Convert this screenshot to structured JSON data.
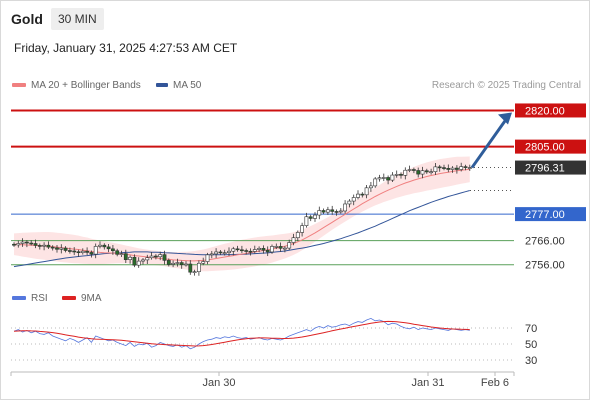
{
  "header": {
    "title": "Gold",
    "timeframe": "30 MIN"
  },
  "datetime": "Friday, January 31, 2025 4:27:53 AM CET",
  "credit": "Research © 2025 Trading Central",
  "colors": {
    "resistance": "#cc1111",
    "support": "#5aa05a",
    "pivot": "#3366cc",
    "ma20": "#f08080",
    "ma50": "#335599",
    "band": "#fde4e4",
    "arrow": "#2f5d9a",
    "bull": "#ffffff",
    "bear": "#2a6a2a",
    "rsi": "#5577dd",
    "rsi_ma": "#dd2222",
    "current": "#333333"
  },
  "chart_data": [
    {
      "type": "candlestick",
      "legend": [
        {
          "name": "MA 20 + Bollinger Bands",
          "color": "#f08080"
        },
        {
          "name": "MA 50",
          "color": "#335599"
        }
      ],
      "x_ticks": [
        "Jan 30",
        "Jan 31",
        "Feb 6"
      ],
      "ylim": [
        2748,
        2826
      ],
      "current_price": "2796.31",
      "levels": [
        {
          "label": "2820.00",
          "value": 2820.0,
          "kind": "resistance"
        },
        {
          "label": "2805.00",
          "value": 2805.0,
          "kind": "resistance"
        },
        {
          "label": "2777.00",
          "value": 2777.0,
          "kind": "pivot"
        },
        {
          "label": "2766.00",
          "value": 2766.0,
          "kind": "support"
        },
        {
          "label": "2756.00",
          "value": 2756.0,
          "kind": "support"
        }
      ],
      "close": [
        2764.2,
        2764.8,
        2765.4,
        2765.0,
        2764.8,
        2764.0,
        2763.7,
        2764.1,
        2763.3,
        2763.0,
        2762.4,
        2762.9,
        2761.9,
        2761.7,
        2761.4,
        2761.0,
        2761.6,
        2761.1,
        2760.4,
        2763.6,
        2764.1,
        2763.4,
        2762.6,
        2761.8,
        2760.3,
        2760.6,
        2758.1,
        2759.1,
        2755.8,
        2757.5,
        2758.0,
        2758.9,
        2759.6,
        2759.3,
        2760.2,
        2757.8,
        2756.1,
        2756.6,
        2756.9,
        2756.0,
        2756.3,
        2752.9,
        2753.1,
        2756.6,
        2757.3,
        2760.1,
        2760.5,
        2761.3,
        2760.9,
        2761.0,
        2761.6,
        2762.6,
        2762.2,
        2761.9,
        2761.6,
        2761.5,
        2762.3,
        2762.8,
        2762.0,
        2761.3,
        2763.6,
        2763.6,
        2762.8,
        2762.9,
        2765.2,
        2767.2,
        2769.4,
        2772.2,
        2775.9,
        2775.2,
        2776.6,
        2778.5,
        2777.8,
        2778.8,
        2778.1,
        2778.0,
        2778.3,
        2781.2,
        2782.4,
        2783.9,
        2785.3,
        2785.0,
        2787.9,
        2788.7,
        2791.6,
        2792.1,
        2792.2,
        2791.1,
        2793.2,
        2793.5,
        2793.1,
        2795.2,
        2795.5,
        2795.1,
        2793.6,
        2795.0,
        2794.5,
        2794.6,
        2796.6,
        2796.3,
        2796.0,
        2795.5,
        2796.1,
        2795.5,
        2796.7,
        2796.3,
        2796.3
      ],
      "ma20": [
        2764.5,
        2764.4,
        2764.3,
        2764.2,
        2764.1,
        2764.0,
        2763.9,
        2763.8,
        2763.7,
        2763.5,
        2763.3,
        2763.1,
        2762.9,
        2762.7,
        2762.5,
        2762.3,
        2762.0,
        2761.8,
        2761.5,
        2761.3,
        2761.1,
        2761.0,
        2760.9,
        2760.8,
        2760.7,
        2760.5,
        2760.3,
        2760.1,
        2759.8,
        2759.6,
        2759.4,
        2759.2,
        2759.0,
        2758.8,
        2758.6,
        2758.4,
        2758.2,
        2758.0,
        2757.9,
        2757.8,
        2757.7,
        2757.6,
        2757.6,
        2757.7,
        2757.8,
        2758.0,
        2758.3,
        2758.6,
        2758.9,
        2759.2,
        2759.5,
        2759.8,
        2760.1,
        2760.4,
        2760.7,
        2761.0,
        2761.3,
        2761.6,
        2761.9,
        2762.2,
        2762.5,
        2762.9,
        2763.3,
        2763.7,
        2764.2,
        2764.8,
        2765.5,
        2766.3,
        2767.2,
        2768.2,
        2769.2,
        2770.3,
        2771.4,
        2772.5,
        2773.6,
        2774.7,
        2775.8,
        2776.9,
        2778.0,
        2779.1,
        2780.2,
        2781.3,
        2782.3,
        2783.3,
        2784.3,
        2785.2,
        2786.1,
        2786.9,
        2787.7,
        2788.5,
        2789.2,
        2789.9,
        2790.5,
        2791.1,
        2791.6,
        2792.1,
        2792.6,
        2793.0,
        2793.4,
        2793.8,
        2794.1,
        2794.4,
        2794.7,
        2795.0,
        2795.2,
        2795.4,
        2795.6
      ],
      "ma50": [
        2755.2,
        2755.5,
        2755.8,
        2756.1,
        2756.4,
        2756.7,
        2757.0,
        2757.3,
        2757.6,
        2757.9,
        2758.2,
        2758.5,
        2758.8,
        2759.0,
        2759.2,
        2759.4,
        2759.6,
        2759.8,
        2760.0,
        2760.2,
        2760.4,
        2760.6,
        2760.7,
        2760.8,
        2760.9,
        2761.0,
        2761.1,
        2761.2,
        2761.3,
        2761.3,
        2761.3,
        2761.3,
        2761.2,
        2761.2,
        2761.1,
        2761.0,
        2760.9,
        2760.8,
        2760.7,
        2760.6,
        2760.5,
        2760.4,
        2760.3,
        2760.2,
        2760.1,
        2760.1,
        2760.1,
        2760.1,
        2760.1,
        2760.1,
        2760.2,
        2760.2,
        2760.3,
        2760.3,
        2760.4,
        2760.5,
        2760.6,
        2760.7,
        2760.8,
        2760.9,
        2761.1,
        2761.3,
        2761.5,
        2761.7,
        2762.0,
        2762.3,
        2762.6,
        2762.9,
        2763.2,
        2763.6,
        2764.0,
        2764.4,
        2764.8,
        2765.3,
        2765.8,
        2766.3,
        2766.8,
        2767.4,
        2768.0,
        2768.6,
        2769.2,
        2769.9,
        2770.6,
        2771.3,
        2772.0,
        2772.8,
        2773.6,
        2774.4,
        2775.2,
        2776.0,
        2776.8,
        2777.6,
        2778.4,
        2779.1,
        2779.8,
        2780.5,
        2781.2,
        2781.9,
        2782.5,
        2783.1,
        2783.7,
        2784.3,
        2784.8,
        2785.3,
        2785.8,
        2786.3,
        2786.8
      ]
    },
    {
      "type": "line",
      "legend": [
        {
          "name": "RSI",
          "color": "#5577dd"
        },
        {
          "name": "9MA",
          "color": "#dd2222"
        }
      ],
      "y_ticks": [
        70,
        50,
        30
      ],
      "ylim": [
        15,
        95
      ],
      "rsi": [
        66,
        68,
        65,
        67,
        64,
        66,
        63,
        62,
        64,
        60,
        58,
        56,
        54,
        57,
        55,
        52,
        55,
        58,
        52,
        60,
        58,
        56,
        54,
        55,
        52,
        50,
        48,
        52,
        47,
        50,
        49,
        51,
        46,
        48,
        52,
        50,
        48,
        47,
        49,
        46,
        48,
        44,
        46,
        50,
        53,
        55,
        56,
        58,
        57,
        59,
        58,
        60,
        58,
        57,
        58,
        56,
        57,
        58,
        56,
        55,
        57,
        56,
        55,
        57,
        60,
        62,
        64,
        66,
        68,
        66,
        70,
        72,
        70,
        73,
        71,
        72,
        74,
        75,
        73,
        76,
        78,
        77,
        80,
        82,
        79,
        80,
        78,
        74,
        76,
        75,
        72,
        70,
        69,
        71,
        68,
        70,
        69,
        68,
        70,
        69,
        68,
        67,
        69,
        68,
        67,
        68,
        67
      ],
      "rsi_ma": [
        66,
        66.3,
        66.5,
        66.6,
        66.4,
        66.2,
        65.8,
        65.4,
        64.9,
        64.3,
        63.4,
        62.5,
        61.4,
        60.5,
        59.6,
        58.6,
        57.8,
        57.1,
        56.5,
        56.1,
        55.9,
        55.7,
        55.5,
        55.3,
        55.0,
        54.6,
        54.0,
        53.5,
        52.9,
        52.3,
        51.6,
        51.0,
        50.4,
        49.9,
        49.6,
        49.3,
        49.0,
        48.7,
        48.5,
        48.2,
        48.0,
        47.7,
        47.5,
        47.6,
        48.0,
        48.6,
        49.4,
        50.3,
        51.2,
        52.2,
        53.2,
        54.2,
        55.1,
        55.9,
        56.6,
        57.1,
        57.4,
        57.6,
        57.6,
        57.5,
        57.3,
        57.2,
        57.0,
        56.9,
        57.0,
        57.4,
        58.0,
        58.8,
        59.8,
        60.8,
        61.9,
        63.0,
        64.1,
        65.3,
        66.5,
        67.6,
        68.7,
        69.8,
        70.9,
        71.9,
        72.9,
        73.9,
        74.9,
        75.9,
        76.8,
        77.5,
        78.0,
        78.2,
        78.1,
        77.8,
        77.2,
        76.5,
        75.7,
        74.8,
        73.9,
        73.0,
        72.1,
        71.3,
        70.6,
        70.0,
        69.5,
        69.1,
        68.8,
        68.6,
        68.4,
        68.2,
        68.0
      ]
    }
  ]
}
